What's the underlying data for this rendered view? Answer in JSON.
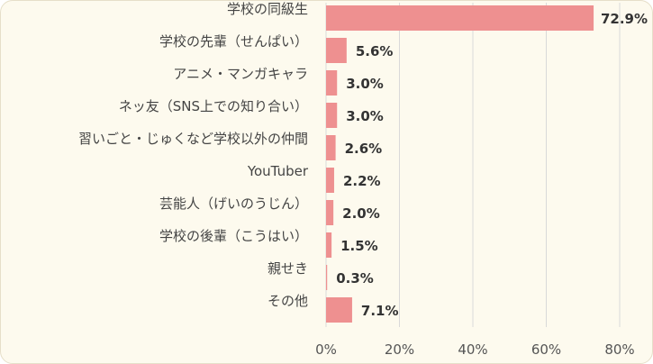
{
  "chart_data": {
    "type": "bar",
    "orientation": "horizontal",
    "categories": [
      "学校の同級生",
      "学校の先輩（せんぱい）",
      "アニメ・マンガキャラ",
      "ネッ友（SNS上での知り合い）",
      "習いごと・じゅくなど学校以外の仲間",
      "YouTuber",
      "芸能人（げいのうじん）",
      "学校の後輩（こうはい）",
      "親せき",
      "その他"
    ],
    "values": [
      72.9,
      5.6,
      3.0,
      3.0,
      2.6,
      2.2,
      2.0,
      1.5,
      0.3,
      7.1
    ],
    "value_labels": [
      "72.9%",
      "5.6%",
      "3.0%",
      "3.0%",
      "2.6%",
      "2.2%",
      "2.0%",
      "1.5%",
      "0.3%",
      "7.1%"
    ],
    "x_ticks": [
      "0%",
      "20%",
      "40%",
      "60%",
      "80%"
    ],
    "xlim": [
      0,
      80
    ],
    "grid": true,
    "bar_color": "#ee9090",
    "title": "",
    "xlabel": "",
    "ylabel": ""
  }
}
